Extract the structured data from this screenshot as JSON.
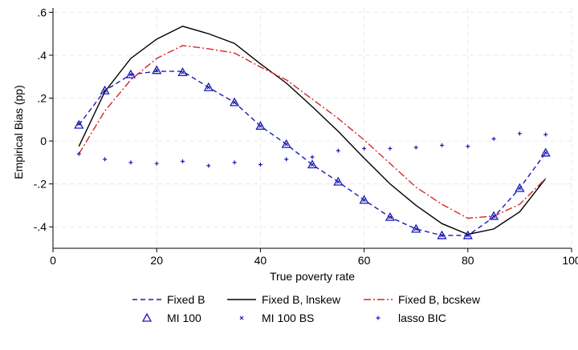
{
  "chart_data": {
    "type": "line",
    "xlabel": "True poverty rate",
    "ylabel": "Empirical Bias (pp)",
    "xlim": [
      0,
      100
    ],
    "ylim": [
      -0.5,
      0.62
    ],
    "x_ticks": [
      0,
      20,
      40,
      60,
      80,
      100
    ],
    "x_tick_labels": [
      "0",
      "20",
      "40",
      "60",
      "80",
      "100"
    ],
    "y_ticks": [
      -0.4,
      -0.2,
      0,
      0.2,
      0.4,
      0.6
    ],
    "y_tick_labels": [
      "-.4",
      "-.2",
      "0",
      ".2",
      ".4",
      ".6"
    ],
    "grid": true,
    "legend_position": "bottom",
    "x": [
      5,
      10,
      15,
      20,
      25,
      30,
      35,
      40,
      45,
      50,
      55,
      60,
      65,
      70,
      75,
      80,
      85,
      90,
      95
    ],
    "series": [
      {
        "name": "Fixed B",
        "style": "dashed-line",
        "color": "#1a1ab5",
        "values": [
          0.075,
          0.235,
          0.31,
          0.325,
          0.325,
          0.25,
          0.18,
          0.07,
          -0.015,
          -0.11,
          -0.19,
          -0.275,
          -0.355,
          -0.41,
          -0.44,
          -0.44,
          -0.355,
          -0.22,
          -0.055
        ]
      },
      {
        "name": "Fixed B, lnskew",
        "style": "solid-line",
        "color": "#000000",
        "values": [
          -0.025,
          0.23,
          0.385,
          0.475,
          0.535,
          0.5,
          0.455,
          0.36,
          0.27,
          0.16,
          0.045,
          -0.08,
          -0.2,
          -0.3,
          -0.385,
          -0.435,
          -0.41,
          -0.33,
          -0.175
        ]
      },
      {
        "name": "Fixed B, bcskew",
        "style": "dashdot-line",
        "color": "#d62728",
        "values": [
          -0.06,
          0.14,
          0.285,
          0.385,
          0.445,
          0.43,
          0.41,
          0.345,
          0.285,
          0.195,
          0.105,
          0.005,
          -0.105,
          -0.215,
          -0.295,
          -0.36,
          -0.35,
          -0.295,
          -0.175
        ]
      },
      {
        "name": "MI 100",
        "style": "triangle-markers",
        "color": "#1a1ab5",
        "values": [
          0.075,
          0.235,
          0.31,
          0.33,
          0.32,
          0.25,
          0.18,
          0.07,
          -0.015,
          -0.11,
          -0.19,
          -0.275,
          -0.355,
          -0.41,
          -0.44,
          -0.44,
          -0.35,
          -0.22,
          -0.055
        ]
      },
      {
        "name": "MI 100 BS",
        "style": "x-markers",
        "color": "#1a1ab5",
        "values": [
          0.08,
          0.235,
          0.31,
          0.33,
          0.32,
          0.25,
          0.18,
          0.07,
          -0.015,
          -0.11,
          -0.19,
          -0.275,
          -0.355,
          -0.41,
          -0.44,
          -0.44,
          -0.35,
          -0.22,
          -0.055
        ]
      },
      {
        "name": "lasso BIC",
        "style": "plus-markers",
        "color": "#1a1ab5",
        "values": [
          -0.06,
          -0.085,
          -0.1,
          -0.105,
          -0.095,
          -0.115,
          -0.1,
          -0.11,
          -0.085,
          -0.075,
          -0.045,
          -0.035,
          -0.035,
          -0.03,
          -0.02,
          -0.025,
          0.01,
          0.035,
          0.03
        ]
      }
    ]
  }
}
